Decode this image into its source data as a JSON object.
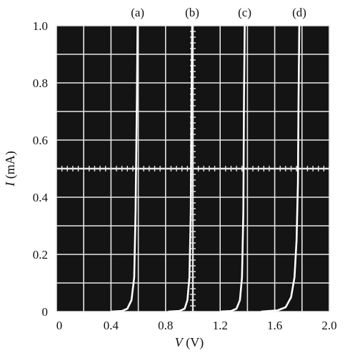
{
  "chart_data": {
    "type": "line",
    "title": "",
    "xlabel": "V (V)",
    "ylabel": "I (mA)",
    "xlabel_parts": {
      "var": "V",
      "unit": "(V)"
    },
    "ylabel_parts": {
      "var": "I",
      "unit": "(mA)"
    },
    "xlim": [
      0,
      2.0
    ],
    "ylim": [
      0,
      1.0
    ],
    "xticks": [
      "0",
      "0.4",
      "0.8",
      "1.2",
      "1.6",
      "2.0"
    ],
    "yticks": [
      "0",
      "0.2",
      "0.4",
      "0.6",
      "0.8",
      "1.0"
    ],
    "grid": true,
    "background": "#141414",
    "grid_color": "#e6e6e6",
    "curve_color": "#ffffff",
    "series": [
      {
        "name": "(a)",
        "x": [
          0.4,
          0.48,
          0.52,
          0.55,
          0.57,
          0.58,
          0.59,
          0.595
        ],
        "y": [
          0.0,
          0.002,
          0.01,
          0.04,
          0.12,
          0.35,
          0.75,
          1.0
        ]
      },
      {
        "name": "(b)",
        "x": [
          0.82,
          0.9,
          0.94,
          0.96,
          0.975,
          0.985,
          0.99,
          0.995
        ],
        "y": [
          0.0,
          0.002,
          0.01,
          0.04,
          0.12,
          0.35,
          0.75,
          1.0
        ]
      },
      {
        "name": "(c)",
        "x": [
          1.2,
          1.28,
          1.32,
          1.345,
          1.36,
          1.37,
          1.375,
          1.38
        ],
        "y": [
          0.0,
          0.002,
          0.01,
          0.04,
          0.12,
          0.35,
          0.75,
          1.0
        ]
      },
      {
        "name": "(d)",
        "x": [
          1.5,
          1.62,
          1.68,
          1.72,
          1.745,
          1.76,
          1.77,
          1.775,
          1.78
        ],
        "y": [
          0.0,
          0.004,
          0.015,
          0.05,
          0.12,
          0.25,
          0.45,
          0.75,
          1.0
        ]
      }
    ]
  }
}
